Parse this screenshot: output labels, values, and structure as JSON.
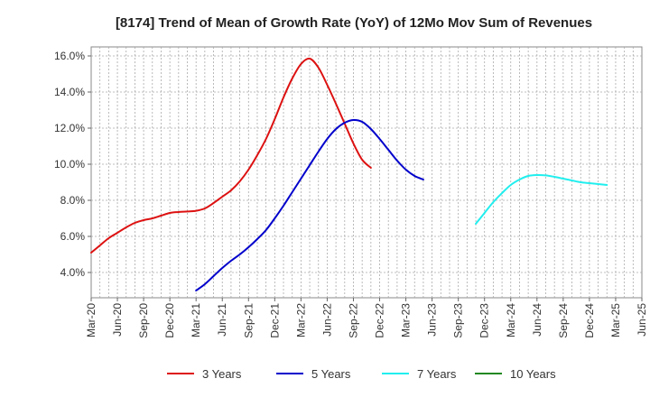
{
  "chart_data": {
    "type": "line",
    "title": "[8174]  Trend of Mean of Growth Rate (YoY) of 12Mo Mov Sum of Revenues",
    "xlabel": "",
    "ylabel": "",
    "ylim": [
      2.6,
      16.5
    ],
    "y_ticks": [
      4.0,
      6.0,
      8.0,
      10.0,
      12.0,
      14.0,
      16.0
    ],
    "y_tick_labels": [
      "4.0%",
      "6.0%",
      "8.0%",
      "10.0%",
      "12.0%",
      "14.0%",
      "16.0%"
    ],
    "x_ticks": [
      "Mar-20",
      "Jun-20",
      "Sep-20",
      "Dec-20",
      "Mar-21",
      "Jun-21",
      "Sep-21",
      "Dec-21",
      "Mar-22",
      "Jun-22",
      "Sep-22",
      "Dec-22",
      "Mar-23",
      "Jun-23",
      "Sep-23",
      "Dec-23",
      "Mar-24",
      "Jun-24",
      "Sep-24",
      "Dec-24",
      "Mar-25",
      "Jun-25"
    ],
    "grid": true,
    "legend_position": "bottom",
    "series": [
      {
        "name": "3 Years",
        "color": "#dd1111",
        "start_index": 0,
        "values": [
          5.1,
          5.5,
          5.9,
          6.2,
          6.5,
          6.75,
          6.9,
          7.0,
          7.15,
          7.3,
          7.35,
          7.38,
          7.42,
          7.55,
          7.85,
          8.2,
          8.55,
          9.05,
          9.7,
          10.5,
          11.4,
          12.5,
          13.7,
          14.75,
          15.55,
          15.85,
          15.35,
          14.4,
          13.35,
          12.25,
          11.15,
          10.25,
          9.8
        ]
      },
      {
        "name": "5 Years",
        "color": "#0000cc",
        "start_index": 12,
        "values": [
          3.0,
          3.35,
          3.8,
          4.25,
          4.65,
          5.0,
          5.4,
          5.85,
          6.35,
          7.0,
          7.7,
          8.45,
          9.2,
          9.95,
          10.7,
          11.4,
          11.95,
          12.3,
          12.45,
          12.35,
          11.95,
          11.4,
          10.8,
          10.2,
          9.7,
          9.35,
          9.15
        ]
      },
      {
        "name": "7 Years",
        "color": "#22eeee",
        "start_index": 44,
        "values": [
          6.7,
          7.3,
          7.9,
          8.4,
          8.85,
          9.15,
          9.35,
          9.4,
          9.38,
          9.3,
          9.2,
          9.1,
          9.0,
          8.95,
          8.9,
          8.85
        ]
      },
      {
        "name": "10 Years",
        "color": "#228822",
        "start_index": 0,
        "values": []
      }
    ]
  }
}
